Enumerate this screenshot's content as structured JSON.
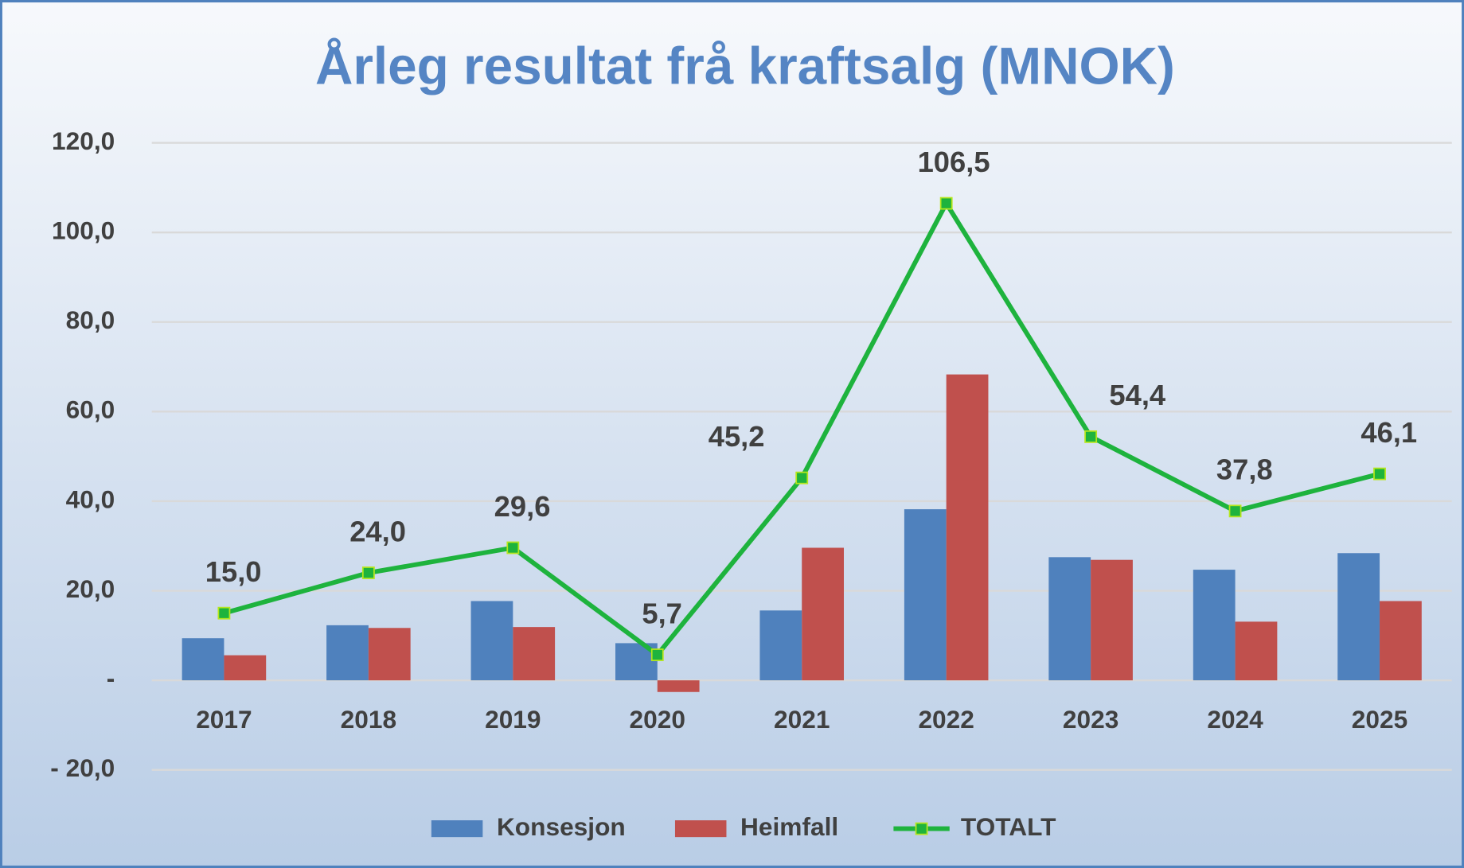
{
  "chart_data": {
    "type": "bar",
    "title": "Årleg resultat frå kraftsalg (MNOK)",
    "categories": [
      "2017",
      "2018",
      "2019",
      "2020",
      "2021",
      "2022",
      "2023",
      "2024",
      "2025"
    ],
    "series": [
      {
        "name": "Konsesjon",
        "color": "#4f81bd",
        "values": [
          9.4,
          12.3,
          17.7,
          8.3,
          15.6,
          38.2,
          27.5,
          24.7,
          28.4
        ]
      },
      {
        "name": "Heimfall",
        "color": "#c0504d",
        "values": [
          5.6,
          11.7,
          11.9,
          -2.6,
          29.6,
          68.3,
          26.9,
          13.1,
          17.7
        ]
      },
      {
        "name": "TOTALT",
        "type": "line",
        "color": "#1eb33d",
        "values": [
          15.0,
          24.0,
          29.6,
          5.7,
          45.2,
          106.5,
          54.4,
          37.8,
          46.1
        ],
        "value_labels": [
          "15,0",
          "24,0",
          "29,6",
          "5,7",
          "45,2",
          "106,5",
          "54,4",
          "37,8",
          "46,1"
        ]
      }
    ],
    "ylim": [
      -20,
      120
    ],
    "yticks": [
      {
        "value": -20,
        "label": "- 20,0"
      },
      {
        "value": 0,
        "label": "-"
      },
      {
        "value": 20,
        "label": "20,0"
      },
      {
        "value": 40,
        "label": "40,0"
      },
      {
        "value": 60,
        "label": "60,0"
      },
      {
        "value": 80,
        "label": "80,0"
      },
      {
        "value": 100,
        "label": "100,0"
      },
      {
        "value": 120,
        "label": "120,0"
      }
    ],
    "grid": true,
    "legend": "bottom"
  }
}
